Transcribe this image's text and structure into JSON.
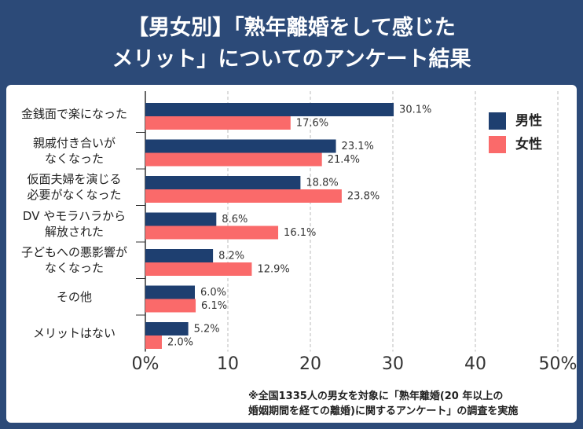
{
  "chart_data": {
    "type": "hbar",
    "title": "【男女別】「熟年離婚をして感じた\nメリット」についてのアンケート結果",
    "categories": [
      "金銭面で楽になった",
      "親戚付き合いが\nなくなった",
      "仮面夫婦を演じる\n必要がなくなった",
      "DV やモラハラから\n解放された",
      "子どもへの悪影響が\nなくなった",
      "その他",
      "メリットはない"
    ],
    "series": [
      {
        "name": "男性",
        "color": "#1e3f70",
        "values": [
          30.1,
          23.1,
          18.8,
          8.6,
          8.2,
          6.0,
          5.2
        ],
        "value_labels": [
          "30.1%",
          "23.1%",
          "18.8%",
          "8.6%",
          "8.2%",
          "6.0%",
          "5.2%"
        ]
      },
      {
        "name": "女性",
        "color": "#fa6a6a",
        "values": [
          17.6,
          21.4,
          23.8,
          16.1,
          12.9,
          6.1,
          2.0
        ],
        "value_labels": [
          "17.6%",
          "21.4%",
          "23.8%",
          "16.1%",
          "12.9%",
          "6.1%",
          "2.0%"
        ]
      }
    ],
    "xlim": [
      0,
      50
    ],
    "xticks": [
      {
        "value": 0,
        "label": "0%"
      },
      10,
      20,
      30,
      40,
      {
        "value": 50,
        "label": "50%"
      }
    ],
    "grid": true,
    "legend": "top-right",
    "note": "※全国1335人の男女を対象に「熟年離婚(20 年以上の\n婚姻期間を経ての離婚)に関するアンケート」の調査を実施"
  }
}
